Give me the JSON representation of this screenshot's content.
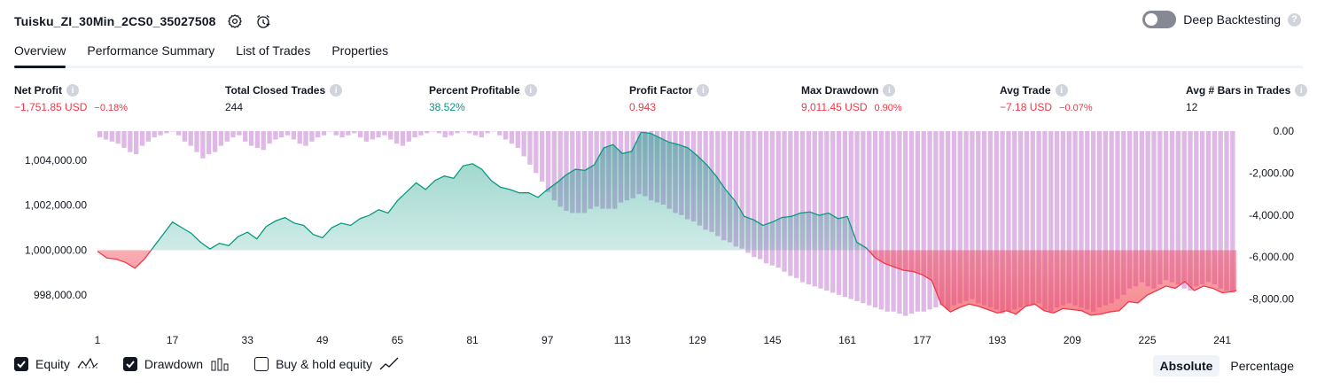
{
  "header": {
    "strategy_title": "Tuisku_ZI_30Min_2CS0_35027508",
    "deep_backtesting_label": "Deep Backtesting",
    "deep_backtesting_enabled": false
  },
  "tabs": [
    {
      "label": "Overview",
      "active": true
    },
    {
      "label": "Performance Summary",
      "active": false
    },
    {
      "label": "List of Trades",
      "active": false
    },
    {
      "label": "Properties",
      "active": false
    }
  ],
  "metrics": [
    {
      "label": "Net Profit",
      "value": "−1,751.85 USD",
      "pct": "−0.18%",
      "tone": "neg"
    },
    {
      "label": "Total Closed Trades",
      "value": "244",
      "pct": "",
      "tone": "neutral"
    },
    {
      "label": "Percent Profitable",
      "value": "38.52%",
      "pct": "",
      "tone": "pos"
    },
    {
      "label": "Profit Factor",
      "value": "0.943",
      "pct": "",
      "tone": "neg"
    },
    {
      "label": "Max Drawdown",
      "value": "9,011.45 USD",
      "pct": "0.90%",
      "tone": "neg"
    },
    {
      "label": "Avg Trade",
      "value": "−7.18 USD",
      "pct": "−0.07%",
      "tone": "neg"
    },
    {
      "label": "Avg # Bars in Trades",
      "value": "12",
      "pct": "",
      "tone": "neutral"
    }
  ],
  "legend": {
    "equity_label": "Equity",
    "equity_checked": true,
    "drawdown_label": "Drawdown",
    "drawdown_checked": true,
    "buyhold_label": "Buy & hold equity",
    "buyhold_checked": false
  },
  "modes": {
    "absolute_label": "Absolute",
    "percentage_label": "Percentage",
    "active": "absolute"
  },
  "colors": {
    "profit": "#089981",
    "loss": "#f23645",
    "drawdown": "#ce93d8"
  },
  "chart_data": {
    "type": "area",
    "x_ticks": [
      1,
      17,
      33,
      49,
      65,
      81,
      97,
      113,
      129,
      145,
      161,
      177,
      193,
      209,
      225,
      241
    ],
    "y_left_ticks": [
      "998,000.00",
      "1,000,000.00",
      "1,002,000.00",
      "1,004,000.00"
    ],
    "y_left_values": [
      998000,
      1000000,
      1002000,
      1004000
    ],
    "y_left_range": [
      996700,
      1005300
    ],
    "y_right_ticks": [
      "0.00",
      "-2,000.00",
      "-4,000.00",
      "-6,000.00",
      "-8,000.00"
    ],
    "y_right_values": [
      0,
      -2000,
      -4000,
      -6000,
      -8000
    ],
    "y_right_range": [
      -9200,
      0
    ],
    "x_range": [
      1,
      244
    ],
    "baseline": 1000000,
    "series": [
      {
        "name": "Equity",
        "points": [
          [
            1,
            999950
          ],
          [
            3,
            999650
          ],
          [
            5,
            999600
          ],
          [
            7,
            999450
          ],
          [
            9,
            999200
          ],
          [
            11,
            999600
          ],
          [
            13,
            1000150
          ],
          [
            15,
            1000700
          ],
          [
            17,
            1001250
          ],
          [
            19,
            1001000
          ],
          [
            21,
            1000750
          ],
          [
            23,
            1000350
          ],
          [
            25,
            1000050
          ],
          [
            27,
            1000300
          ],
          [
            29,
            1000200
          ],
          [
            31,
            1000600
          ],
          [
            33,
            1000800
          ],
          [
            35,
            1000500
          ],
          [
            37,
            1001050
          ],
          [
            39,
            1001300
          ],
          [
            41,
            1001450
          ],
          [
            43,
            1001200
          ],
          [
            45,
            1001100
          ],
          [
            47,
            1000700
          ],
          [
            49,
            1000550
          ],
          [
            51,
            1001000
          ],
          [
            53,
            1001200
          ],
          [
            55,
            1001100
          ],
          [
            57,
            1001400
          ],
          [
            59,
            1001550
          ],
          [
            61,
            1001800
          ],
          [
            63,
            1001650
          ],
          [
            65,
            1002200
          ],
          [
            67,
            1002600
          ],
          [
            69,
            1003000
          ],
          [
            71,
            1002700
          ],
          [
            73,
            1003100
          ],
          [
            75,
            1003300
          ],
          [
            77,
            1003200
          ],
          [
            79,
            1003750
          ],
          [
            81,
            1003850
          ],
          [
            83,
            1003600
          ],
          [
            85,
            1003100
          ],
          [
            87,
            1002800
          ],
          [
            89,
            1002700
          ],
          [
            91,
            1002550
          ],
          [
            93,
            1002550
          ],
          [
            95,
            1002350
          ],
          [
            97,
            1002700
          ],
          [
            99,
            1003000
          ],
          [
            101,
            1003350
          ],
          [
            103,
            1003600
          ],
          [
            105,
            1003550
          ],
          [
            107,
            1003800
          ],
          [
            109,
            1004550
          ],
          [
            111,
            1004700
          ],
          [
            113,
            1004300
          ],
          [
            115,
            1004400
          ],
          [
            117,
            1005250
          ],
          [
            119,
            1005200
          ],
          [
            121,
            1005000
          ],
          [
            123,
            1004800
          ],
          [
            125,
            1004700
          ],
          [
            127,
            1004550
          ],
          [
            129,
            1004200
          ],
          [
            131,
            1003800
          ],
          [
            133,
            1003300
          ],
          [
            135,
            1002700
          ],
          [
            137,
            1002200
          ],
          [
            139,
            1001500
          ],
          [
            141,
            1001350
          ],
          [
            143,
            1001100
          ],
          [
            145,
            1001250
          ],
          [
            147,
            1001450
          ],
          [
            149,
            1001500
          ],
          [
            151,
            1001650
          ],
          [
            153,
            1001700
          ],
          [
            155,
            1001550
          ],
          [
            157,
            1001650
          ],
          [
            159,
            1001400
          ],
          [
            161,
            1001500
          ],
          [
            163,
            1000350
          ],
          [
            165,
            1000100
          ],
          [
            167,
            999650
          ],
          [
            169,
            999400
          ],
          [
            171,
            999250
          ],
          [
            173,
            999100
          ],
          [
            175,
            999050
          ],
          [
            177,
            998900
          ],
          [
            179,
            998650
          ],
          [
            181,
            997600
          ],
          [
            183,
            997250
          ],
          [
            185,
            997450
          ],
          [
            187,
            997600
          ],
          [
            189,
            997500
          ],
          [
            191,
            997350
          ],
          [
            193,
            997200
          ],
          [
            195,
            997300
          ],
          [
            197,
            997150
          ],
          [
            199,
            997500
          ],
          [
            201,
            997600
          ],
          [
            203,
            997300
          ],
          [
            205,
            997200
          ],
          [
            207,
            997400
          ],
          [
            209,
            997350
          ],
          [
            211,
            997300
          ],
          [
            213,
            997100
          ],
          [
            215,
            997150
          ],
          [
            217,
            997250
          ],
          [
            219,
            997300
          ],
          [
            221,
            997700
          ],
          [
            223,
            997650
          ],
          [
            225,
            998000
          ],
          [
            227,
            998200
          ],
          [
            229,
            998400
          ],
          [
            231,
            998300
          ],
          [
            233,
            998600
          ],
          [
            235,
            998200
          ],
          [
            237,
            998400
          ],
          [
            239,
            998300
          ],
          [
            241,
            998100
          ],
          [
            243,
            998150
          ],
          [
            244,
            998200
          ]
        ]
      },
      {
        "name": "Drawdown",
        "values": [
          -300,
          -400,
          -500,
          -600,
          -800,
          -1000,
          -1100,
          -700,
          -500,
          -300,
          -200,
          -100,
          0,
          -200,
          -500,
          -700,
          -1000,
          -1300,
          -1100,
          -1000,
          -700,
          -500,
          -300,
          -200,
          -500,
          -700,
          -800,
          -900,
          -600,
          -400,
          -300,
          -200,
          -400,
          -600,
          -700,
          -500,
          -300,
          -200,
          0,
          -200,
          -300,
          -200,
          -100,
          -300,
          -500,
          -400,
          -300,
          -200,
          -400,
          -600,
          -700,
          -500,
          -300,
          -200,
          -100,
          0,
          -100,
          -300,
          -200,
          -100,
          0,
          -100,
          -200,
          -300,
          -100,
          0,
          -200,
          -400,
          -600,
          -800,
          -1200,
          -1600,
          -2000,
          -2400,
          -2900,
          -3300,
          -3600,
          -3800,
          -3900,
          -3900,
          -3900,
          -3700,
          -3600,
          -3700,
          -3700,
          -3700,
          -3400,
          -3300,
          -3200,
          -3000,
          -3100,
          -3300,
          -3400,
          -3500,
          -3700,
          -3900,
          -4000,
          -4200,
          -4300,
          -4500,
          -4700,
          -4800,
          -5000,
          -5200,
          -5300,
          -5500,
          -5600,
          -5800,
          -6000,
          -6100,
          -6300,
          -6400,
          -6500,
          -6700,
          -6900,
          -7000,
          -7200,
          -7300,
          -7400,
          -7500,
          -7600,
          -7700,
          -7800,
          -7900,
          -8000,
          -8100,
          -8200,
          -8300,
          -8400,
          -8500,
          -8600,
          -8600,
          -8700,
          -8800,
          -8700,
          -8600,
          -8600,
          -8500,
          -8400,
          -8300,
          -8500,
          -8300,
          -8200,
          -8100,
          -8000,
          -8200,
          -8300,
          -8400,
          -8500,
          -8700,
          -8600,
          -8500,
          -8400,
          -8300,
          -8300,
          -8200,
          -8500,
          -8600,
          -8400,
          -8300,
          -8200,
          -8300,
          -8400,
          -8500,
          -8600,
          -8400,
          -8300,
          -8200,
          -8000,
          -7800,
          -7500,
          -7400,
          -7200,
          -7400,
          -7500,
          -7300,
          -7100,
          -7200,
          -7300,
          -7500,
          -7600,
          -7400,
          -7300,
          -7200,
          -7300,
          -7500,
          -7600,
          -7700
        ]
      }
    ]
  }
}
